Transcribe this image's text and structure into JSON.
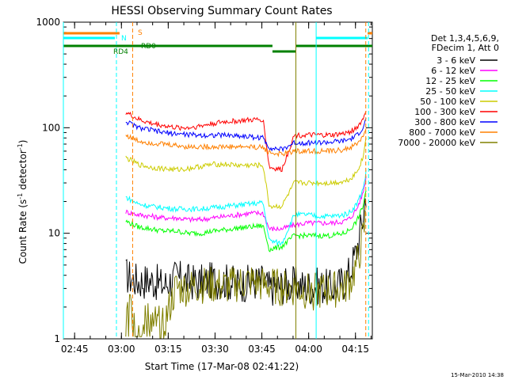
{
  "chart_data": {
    "type": "line",
    "title": "HESSI Observing Summary Count Rates",
    "xlabel": "Start Time (17-Mar-08 02:41:22)",
    "ylabel_parts": [
      "Count Rate (s",
      "-1",
      " detector",
      "-1",
      ")"
    ],
    "ylabel_text": "Count Rate (s-1 detector-1)",
    "y_scale": "log",
    "ylim": [
      1,
      1000
    ],
    "y_ticks": [
      {
        "value": 1,
        "label": "1"
      },
      {
        "value": 10,
        "label": "10"
      },
      {
        "value": 100,
        "label": "100"
      },
      {
        "value": 1000,
        "label": "1000"
      }
    ],
    "x_unit": "minutes since 02:41:22",
    "xlim": [
      0,
      99
    ],
    "x_ticks": [
      {
        "label": "02:45",
        "value": 3.6
      },
      {
        "label": "03:00",
        "value": 18.6
      },
      {
        "label": "03:15",
        "value": 33.6
      },
      {
        "label": "03:30",
        "value": 48.6
      },
      {
        "label": "03:45",
        "value": 63.6
      },
      {
        "label": "04:00",
        "value": 78.6
      },
      {
        "label": "04:15",
        "value": 93.6
      }
    ],
    "legend": {
      "header": [
        "Det 1,3,4,5,6,9,",
        "FDecim 1, Att 0"
      ],
      "placement": "right"
    },
    "series": [
      {
        "name": "3 - 6 keV",
        "color": "#000000",
        "x": [
          20,
          24,
          28,
          32,
          36,
          40,
          44,
          48,
          52,
          56,
          60,
          64,
          66,
          70,
          74,
          78,
          82,
          86,
          90,
          92,
          94,
          96,
          97
        ],
        "y": [
          4,
          3.5,
          3.6,
          3.2,
          3.8,
          3.5,
          3.4,
          3.6,
          3.5,
          3.3,
          3.4,
          3.5,
          3,
          3.2,
          3.3,
          3.1,
          3.2,
          3,
          3.5,
          4.5,
          7,
          14,
          25
        ]
      },
      {
        "name": "6 - 12 keV",
        "color": "#ff00ff",
        "x": [
          20,
          24,
          28,
          32,
          36,
          40,
          44,
          48,
          52,
          56,
          60,
          64,
          66,
          70,
          74,
          78,
          82,
          86,
          90,
          92,
          94,
          96,
          97
        ],
        "y": [
          16,
          15,
          14.5,
          14,
          14,
          13.5,
          13.5,
          14,
          14.5,
          15,
          15.5,
          15.5,
          11,
          11,
          12,
          12.5,
          12.5,
          12.5,
          13,
          14,
          17,
          24,
          34
        ]
      },
      {
        "name": "12 - 25 keV",
        "color": "#00ff00",
        "x": [
          20,
          24,
          28,
          32,
          36,
          40,
          44,
          48,
          52,
          56,
          60,
          64,
          66,
          70,
          74,
          78,
          82,
          86,
          90,
          92,
          94,
          96,
          97
        ],
        "y": [
          13,
          11.5,
          11,
          10.5,
          10.5,
          10,
          10,
          10.5,
          10.8,
          11.2,
          11.5,
          11.8,
          7,
          7.5,
          9.5,
          9.5,
          9.5,
          9.5,
          10,
          11,
          13,
          18,
          26
        ]
      },
      {
        "name": "25 - 50 keV",
        "color": "#00ffff",
        "x": [
          20,
          24,
          28,
          32,
          36,
          40,
          44,
          48,
          52,
          56,
          60,
          64,
          66,
          70,
          74,
          78,
          82,
          86,
          90,
          92,
          94,
          96,
          97
        ],
        "y": [
          22,
          19,
          18,
          17.5,
          17,
          17,
          17,
          17.5,
          18,
          18.5,
          19,
          19.5,
          8.5,
          8,
          15,
          15,
          14.5,
          14.5,
          15,
          16,
          19,
          26,
          38
        ]
      },
      {
        "name": "50 - 100 keV",
        "color": "#cccc00",
        "x": [
          20,
          24,
          28,
          32,
          36,
          40,
          44,
          48,
          52,
          56,
          60,
          64,
          66,
          70,
          74,
          78,
          82,
          86,
          90,
          92,
          94,
          96,
          97
        ],
        "y": [
          52,
          45,
          42,
          41,
          40,
          41,
          43,
          45,
          45,
          44,
          44,
          44,
          18,
          18,
          30,
          30,
          30,
          30,
          31,
          33,
          38,
          52,
          80
        ]
      },
      {
        "name": "100 - 300 keV",
        "color": "#ff0000",
        "x": [
          20,
          24,
          28,
          32,
          36,
          40,
          44,
          48,
          52,
          56,
          60,
          64,
          66,
          70,
          74,
          78,
          82,
          86,
          90,
          92,
          94,
          96,
          97
        ],
        "y": [
          140,
          120,
          110,
          105,
          100,
          100,
          104,
          110,
          114,
          116,
          118,
          120,
          42,
          40,
          85,
          85,
          85,
          85,
          88,
          92,
          100,
          120,
          150
        ]
      },
      {
        "name": "300 - 800 keV",
        "color": "#0000ff",
        "x": [
          20,
          24,
          28,
          32,
          36,
          40,
          44,
          48,
          52,
          56,
          60,
          64,
          66,
          70,
          74,
          78,
          82,
          86,
          90,
          92,
          94,
          96,
          97
        ],
        "y": [
          115,
          100,
          95,
          90,
          88,
          86,
          85,
          85,
          85,
          84,
          82,
          80,
          65,
          62,
          72,
          72,
          72,
          73,
          75,
          78,
          84,
          100,
          120
        ]
      },
      {
        "name": "800 - 7000 keV",
        "color": "#ff8000",
        "x": [
          20,
          24,
          28,
          32,
          36,
          40,
          44,
          48,
          52,
          56,
          60,
          64,
          66,
          70,
          74,
          78,
          82,
          86,
          90,
          92,
          94,
          96,
          97
        ],
        "y": [
          85,
          75,
          72,
          70,
          68,
          66,
          66,
          66,
          66,
          66,
          66,
          65,
          58,
          56,
          60,
          60,
          60,
          60,
          62,
          65,
          70,
          82,
          100
        ]
      },
      {
        "name": "7000 - 20000 keV",
        "color": "#808000",
        "x": [
          20,
          24,
          28,
          32,
          36,
          40,
          44,
          48,
          52,
          56,
          60,
          64,
          66,
          70,
          74,
          78,
          82,
          86,
          90,
          92,
          94,
          96,
          97
        ],
        "y": [
          2.2,
          1.6,
          1.5,
          1.3,
          3,
          3,
          3.2,
          3.2,
          3.1,
          3.3,
          3.5,
          3.2,
          3.2,
          3,
          3,
          2.8,
          2.8,
          2.9,
          3,
          3.5,
          5,
          9,
          15
        ]
      }
    ],
    "flag_labels": [
      "S",
      "N",
      "RD4",
      "RD0"
    ],
    "flag_colors": {
      "s": "#ff8000",
      "n": "#00ffff",
      "rd": "#008000"
    },
    "grid": false,
    "footer_timestamp": "15-Mar-2010 14:38"
  }
}
